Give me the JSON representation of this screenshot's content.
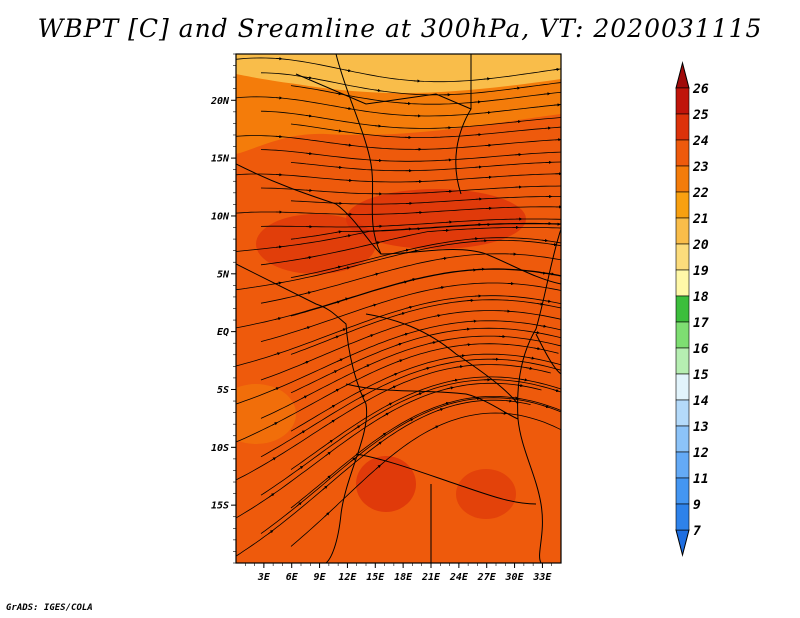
{
  "title": "WBPT [C] and Sreamline at 300hPa, VT: 2020031115",
  "footer": "GrADS: IGES/COLA",
  "map": {
    "lon_range": [
      0,
      35
    ],
    "lat_range": [
      -20,
      24
    ],
    "x_ticks": [
      "3E",
      "6E",
      "9E",
      "12E",
      "15E",
      "18E",
      "21E",
      "24E",
      "27E",
      "30E",
      "33E"
    ],
    "x_tick_values": [
      3,
      6,
      9,
      12,
      15,
      18,
      21,
      24,
      27,
      30,
      33
    ],
    "y_ticks": [
      "20N",
      "15N",
      "10N",
      "5N",
      "EQ",
      "5S",
      "10S",
      "15S"
    ],
    "y_tick_values": [
      20,
      15,
      10,
      5,
      0,
      -5,
      -10,
      -15
    ]
  },
  "colorbar": {
    "levels": [
      "7",
      "9",
      "11",
      "12",
      "13",
      "14",
      "15",
      "16",
      "17",
      "18",
      "19",
      "20",
      "21",
      "22",
      "23",
      "24",
      "25",
      "26"
    ],
    "colors": [
      "#1e6ee0",
      "#2e82ea",
      "#4496f2",
      "#64aaf6",
      "#8cc3f8",
      "#b4dafa",
      "#e2f4fc",
      "#b6eeb2",
      "#7ede72",
      "#3cbe3c",
      "#fff8a8",
      "#fcdc7c",
      "#f9bd4a",
      "#f8a010",
      "#f47c0a",
      "#ee5a0c",
      "#dc320a",
      "#c0140a",
      "#a00a0a"
    ]
  },
  "field_colors": {
    "north": "#f9bd4a",
    "mid": "#f47c0a",
    "main": "#ee5a0c",
    "hot": "#dc320a"
  }
}
